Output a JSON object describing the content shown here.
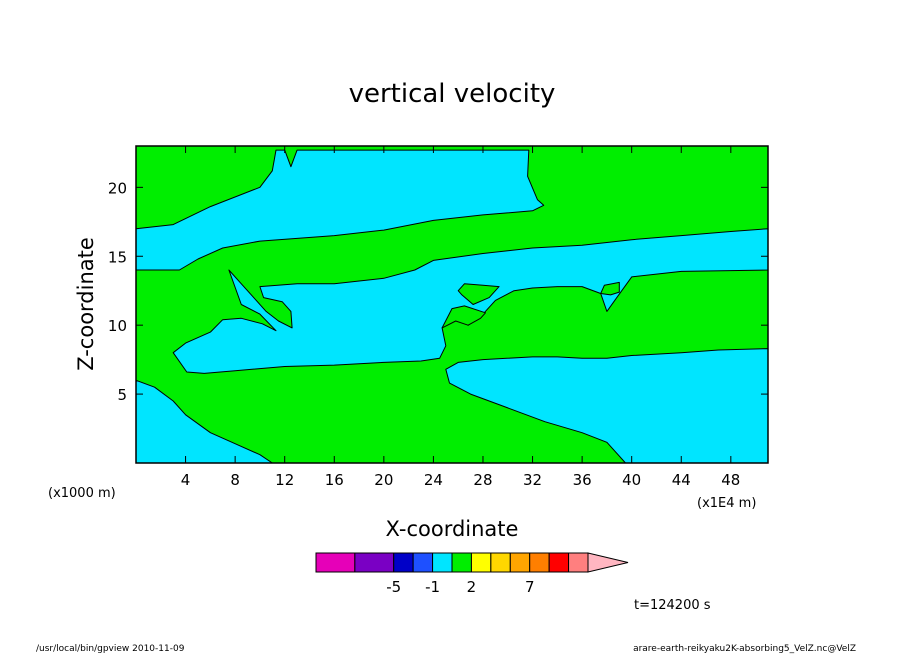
{
  "chart_data": {
    "type": "heatmap",
    "title": "vertical velocity",
    "xlabel": "X-coordinate",
    "ylabel": "Z-coordinate",
    "x_unit_label": "(x1E4 m)",
    "y_unit_label": "(x1000 m)",
    "xlim": [
      0,
      51
    ],
    "ylim": [
      0,
      23
    ],
    "x_ticks": [
      4,
      8,
      12,
      16,
      20,
      24,
      28,
      32,
      36,
      40,
      44,
      48
    ],
    "y_ticks": [
      5,
      10,
      15,
      20
    ],
    "fill_colors": {
      "negative": "#00e5ff",
      "positive": "#00ee00"
    },
    "colorbar": {
      "colors": [
        "#e600b8",
        "#7a00c4",
        "#0000c8",
        "#1e50ff",
        "#00e5ff",
        "#00ee00",
        "#ffff00",
        "#ffd700",
        "#ffa500",
        "#ff7f00",
        "#ff0000",
        "#ff7f7f",
        "#ffb6c1"
      ],
      "labels": [
        {
          "text": "-5",
          "index": 1.5
        },
        {
          "text": "-1",
          "index": 3.5
        },
        {
          "text": "2",
          "index": 5.5
        },
        {
          "text": "7",
          "index": 8.5
        }
      ]
    },
    "time_label": "t=124200 s",
    "footer_left": "/usr/local/bin/gpview  2010-11-09",
    "footer_right": "arare-earth-reikyaku2K-absorbing5_VelZ.nc@VelZ",
    "regions": [
      {
        "name": "band-upper",
        "sign": "negative",
        "boundary": [
          [
            0,
            17
          ],
          [
            3,
            17.3
          ],
          [
            6,
            18.6
          ],
          [
            10,
            20
          ],
          [
            11,
            21.2
          ],
          [
            11.3,
            22.7
          ],
          [
            12,
            22.7
          ],
          [
            12.5,
            21.5
          ],
          [
            13,
            22.7
          ],
          [
            31.7,
            22.7
          ],
          [
            31.6,
            20.8
          ],
          [
            32.4,
            19.1
          ],
          [
            32.9,
            18.7
          ],
          [
            32,
            18.3
          ],
          [
            28,
            18
          ],
          [
            24,
            17.6
          ],
          [
            20,
            16.9
          ],
          [
            16,
            16.5
          ],
          [
            10,
            16.1
          ],
          [
            7,
            15.6
          ],
          [
            5,
            14.8
          ],
          [
            3.5,
            14
          ],
          [
            0,
            14
          ]
        ]
      },
      {
        "name": "band-middle",
        "sign": "negative",
        "boundary": [
          [
            51,
            17
          ],
          [
            48,
            16.8
          ],
          [
            44,
            16.5
          ],
          [
            40,
            16.2
          ],
          [
            36,
            15.8
          ],
          [
            32,
            15.6
          ],
          [
            28,
            15.2
          ],
          [
            24,
            14.7
          ],
          [
            22.5,
            14
          ],
          [
            20,
            13.4
          ],
          [
            16,
            13
          ],
          [
            13,
            13
          ],
          [
            10,
            12.8
          ],
          [
            10.3,
            12
          ],
          [
            11.8,
            11.7
          ],
          [
            12.5,
            11
          ],
          [
            12.6,
            9.8
          ],
          [
            11.5,
            10.3
          ],
          [
            10.5,
            11
          ],
          [
            9.5,
            12
          ],
          [
            8.5,
            13
          ],
          [
            7.5,
            14
          ],
          [
            8.5,
            11.5
          ],
          [
            10,
            10.8
          ],
          [
            11.3,
            9.6
          ],
          [
            10.2,
            10.1
          ],
          [
            8.5,
            10.5
          ],
          [
            7,
            10.4
          ],
          [
            6,
            9.5
          ],
          [
            4,
            8.7
          ],
          [
            3,
            8
          ],
          [
            4.1,
            6.6
          ],
          [
            5.5,
            6.5
          ],
          [
            8,
            6.7
          ],
          [
            12,
            7
          ],
          [
            16,
            7.1
          ],
          [
            20,
            7.3
          ],
          [
            23,
            7.4
          ],
          [
            24.5,
            7.6
          ],
          [
            25,
            8.5
          ],
          [
            24.7,
            9.8
          ],
          [
            25.8,
            10.6
          ],
          [
            26.8,
            10
          ],
          [
            28,
            10.8
          ],
          [
            29,
            11.8
          ],
          [
            30.5,
            12.5
          ],
          [
            32,
            12.7
          ],
          [
            34,
            12.8
          ],
          [
            36,
            12.8
          ],
          [
            37.5,
            12.3
          ],
          [
            38,
            11
          ],
          [
            38.8,
            12
          ],
          [
            40,
            13.5
          ],
          [
            44,
            13.9
          ],
          [
            51,
            14
          ]
        ]
      },
      {
        "name": "band-lower",
        "sign": "negative",
        "boundary": [
          [
            0,
            6
          ],
          [
            1.5,
            5.5
          ],
          [
            3,
            4.5
          ],
          [
            4,
            3.5
          ],
          [
            6,
            2.2
          ],
          [
            8,
            1.4
          ],
          [
            10,
            0.6
          ],
          [
            11,
            0
          ],
          [
            0,
            0
          ]
        ]
      },
      {
        "name": "tongue-lower-right",
        "sign": "negative",
        "boundary": [
          [
            51,
            8.3
          ],
          [
            47,
            8.2
          ],
          [
            44,
            8
          ],
          [
            40,
            7.8
          ],
          [
            38,
            7.6
          ],
          [
            36,
            7.6
          ],
          [
            34,
            7.7
          ],
          [
            32,
            7.7
          ],
          [
            28,
            7.5
          ],
          [
            26,
            7.3
          ],
          [
            25,
            6.8
          ],
          [
            25.3,
            5.8
          ],
          [
            27,
            5
          ],
          [
            30,
            4
          ],
          [
            33,
            3
          ],
          [
            36,
            2.2
          ],
          [
            38,
            1.5
          ],
          [
            39,
            0.5
          ],
          [
            39.5,
            0
          ],
          [
            51,
            0
          ]
        ]
      },
      {
        "name": "pocket-center",
        "sign": "positive",
        "boundary": [
          [
            26.8,
            10
          ],
          [
            27.8,
            10.5
          ],
          [
            28.2,
            10.9
          ],
          [
            26.5,
            11.4
          ],
          [
            25.5,
            11.2
          ],
          [
            24.7,
            9.8
          ],
          [
            25.8,
            10.3
          ]
        ]
      },
      {
        "name": "pocket-28",
        "sign": "positive",
        "boundary": [
          [
            26,
            12.5
          ],
          [
            26.5,
            13
          ],
          [
            28,
            12.9
          ],
          [
            29.3,
            12.8
          ],
          [
            28.5,
            12
          ],
          [
            27.2,
            11.5
          ],
          [
            26.3,
            12.2
          ]
        ]
      },
      {
        "name": "pocket-38",
        "sign": "positive",
        "boundary": [
          [
            37.5,
            12.3
          ],
          [
            37.8,
            12.9
          ],
          [
            39,
            13.1
          ],
          [
            39,
            12.4
          ],
          [
            38.3,
            12.2
          ]
        ]
      }
    ]
  }
}
